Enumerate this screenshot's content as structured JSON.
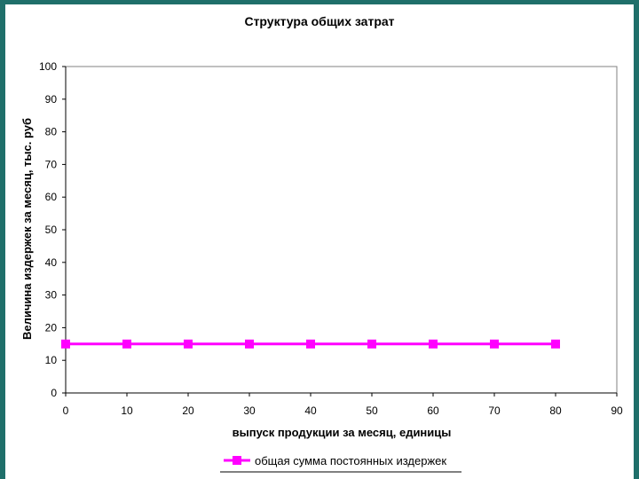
{
  "chart_data": {
    "type": "line",
    "title": "Структура общих затрат",
    "xlabel": "выпуск продукции за месяц, единицы",
    "ylabel": "Величина издержек за месяц, тыс. руб",
    "xlim": [
      0,
      90
    ],
    "ylim": [
      0,
      100
    ],
    "x_ticks": [
      0,
      10,
      20,
      30,
      40,
      50,
      60,
      70,
      80,
      90
    ],
    "y_ticks": [
      0,
      10,
      20,
      30,
      40,
      50,
      60,
      70,
      80,
      90,
      100
    ],
    "grid": false,
    "legend_position": "bottom",
    "series": [
      {
        "name": "общая сумма постоянных издержек",
        "color": "#ff00ff",
        "marker": "square",
        "x": [
          0,
          10,
          20,
          30,
          40,
          50,
          60,
          70,
          80
        ],
        "y": [
          15,
          15,
          15,
          15,
          15,
          15,
          15,
          15,
          15
        ]
      }
    ]
  }
}
